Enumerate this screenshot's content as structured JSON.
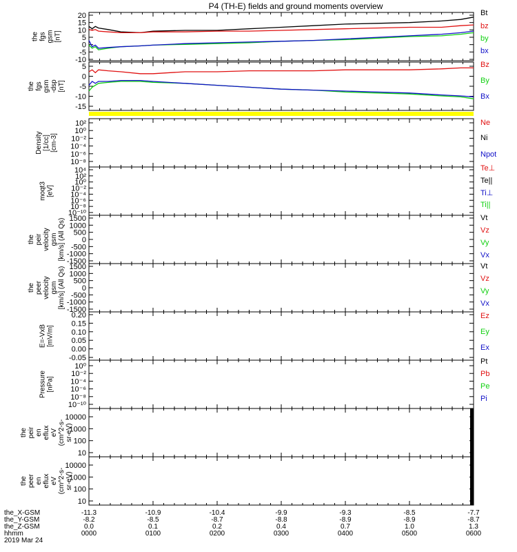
{
  "title": "P4 (TH-E) fields and ground moments overview",
  "colors": {
    "black": "#000000",
    "red": "#e01010",
    "green": "#10d010",
    "blue": "#1010c8",
    "yellow": "#ffff00"
  },
  "chart_data": [
    {
      "type": "line",
      "ylabel": [
        "the",
        "fgs",
        "gsm",
        "[nT]"
      ],
      "yticks": [
        "-10",
        "-5",
        "0",
        "5",
        "10",
        "15",
        "20"
      ],
      "ylim": [
        -10,
        21
      ],
      "legend": [
        {
          "label": "Bt",
          "color": "black"
        },
        {
          "label": "bz",
          "color": "red"
        },
        {
          "label": "by",
          "color": "green"
        },
        {
          "label": "bx",
          "color": "blue"
        }
      ],
      "x_hours": [
        0,
        0.05,
        0.1,
        0.15,
        0.3,
        0.5,
        0.8,
        1.0,
        1.5,
        2.0,
        2.5,
        3.0,
        3.5,
        4.0,
        4.5,
        5.0,
        5.5,
        5.8,
        6.0
      ],
      "series": [
        {
          "name": "Bt",
          "color": "black",
          "values": [
            12,
            10.5,
            12,
            11,
            10,
            8.5,
            8,
            9,
            9.5,
            9.5,
            10.5,
            11.5,
            12.5,
            13.5,
            14,
            14.5,
            15.5,
            16.5,
            18
          ]
        },
        {
          "name": "bz",
          "color": "red",
          "values": [
            10,
            9.5,
            10,
            9,
            8.5,
            8,
            8,
            8.5,
            8.5,
            9,
            9,
            9.5,
            10,
            10.5,
            11,
            11.5,
            11.5,
            12.5,
            13
          ]
        },
        {
          "name": "by",
          "color": "green",
          "values": [
            0,
            -2,
            -1,
            -3,
            -2,
            -1,
            -0.5,
            0,
            0.5,
            1,
            1.5,
            2.5,
            3,
            3.5,
            4.5,
            5.5,
            6,
            7,
            8
          ]
        },
        {
          "name": "bx",
          "color": "blue",
          "values": [
            3,
            -1,
            0,
            -2,
            -1.5,
            -1,
            -0.5,
            0,
            1,
            1.5,
            2,
            2.5,
            3,
            4,
            5,
            6,
            7,
            8,
            9
          ]
        }
      ]
    },
    {
      "type": "line",
      "ylabel": [
        "the",
        "fgs",
        "gsm",
        "-dsp",
        "[nT]"
      ],
      "yticks": [
        "-15",
        "-10",
        "-5",
        "0",
        "5"
      ],
      "ylim": [
        -18,
        7
      ],
      "legend": [
        {
          "label": "Bz",
          "color": "red"
        },
        {
          "label": "By",
          "color": "green"
        },
        {
          "label": "Bx",
          "color": "blue"
        }
      ],
      "x_hours": [
        0,
        0.05,
        0.1,
        0.15,
        0.3,
        0.5,
        0.8,
        1.0,
        1.5,
        2.0,
        2.5,
        3.0,
        3.5,
        4.0,
        4.5,
        5.0,
        5.5,
        5.8,
        6.0
      ],
      "series": [
        {
          "name": "Bz",
          "color": "red",
          "values": [
            2,
            3,
            1.5,
            3,
            2.5,
            2,
            1,
            1,
            2,
            2,
            2.5,
            2.5,
            2.5,
            3,
            3,
            3,
            3.5,
            4,
            4
          ]
        },
        {
          "name": "By",
          "color": "green",
          "values": [
            -8,
            -6,
            -5,
            -4,
            -3.5,
            -3,
            -3,
            -3.5,
            -4,
            -5,
            -6,
            -7,
            -7.5,
            -8.5,
            -9,
            -9.5,
            -10.5,
            -11,
            -12
          ]
        },
        {
          "name": "Bx",
          "color": "blue",
          "values": [
            -5,
            -3,
            -4,
            -3,
            -3,
            -2.5,
            -2.5,
            -3,
            -4,
            -5,
            -6,
            -7,
            -7.5,
            -8,
            -8.5,
            -9,
            -10,
            -10.5,
            -11
          ]
        }
      ]
    },
    {
      "type": "line",
      "yscale": "log",
      "ylabel": [
        "Density",
        "[1/cc]",
        "[cm-3]"
      ],
      "yticks": [
        "10⁻⁸",
        "10⁻⁶",
        "10⁻⁴",
        "10⁻²",
        "10⁰",
        "10²"
      ],
      "legend": [
        {
          "label": "Ne",
          "color": "red"
        },
        {
          "label": "Ni",
          "color": "black"
        },
        {
          "label": "Npot",
          "color": "blue"
        }
      ]
    },
    {
      "type": "line",
      "yscale": "log",
      "ylabel": [
        "moqt3",
        "[eV]"
      ],
      "yticks": [
        "10⁻¹⁰",
        "10⁻⁸",
        "10⁻⁶",
        "10⁻⁴",
        "10⁻²",
        "10⁰",
        "10²",
        "10⁴"
      ],
      "legend": [
        {
          "label": "Te⊥",
          "color": "red"
        },
        {
          "label": "Te||",
          "color": "black"
        },
        {
          "label": "Ti⊥",
          "color": "blue"
        },
        {
          "label": "Ti||",
          "color": "green"
        }
      ]
    },
    {
      "type": "line",
      "ylabel": [
        "the",
        "peir",
        "velocity",
        "gsm",
        "[km/s] (All Qs)"
      ],
      "yticks": [
        "-1500",
        "-1000",
        "-500",
        "0",
        "500",
        "1000",
        "1500"
      ],
      "legend": [
        {
          "label": "Vt",
          "color": "black"
        },
        {
          "label": "Vz",
          "color": "red"
        },
        {
          "label": "Vy",
          "color": "green"
        },
        {
          "label": "Vx",
          "color": "blue"
        }
      ]
    },
    {
      "type": "line",
      "ylabel": [
        "the",
        "peer",
        "velocity",
        "gsm",
        "[km/s] (All Qs)"
      ],
      "yticks": [
        "-1500",
        "-1000",
        "-500",
        "0",
        "500",
        "1000",
        "1500"
      ],
      "legend": [
        {
          "label": "Vt",
          "color": "black"
        },
        {
          "label": "Vz",
          "color": "red"
        },
        {
          "label": "Vy",
          "color": "green"
        },
        {
          "label": "Vx",
          "color": "blue"
        }
      ]
    },
    {
      "type": "line",
      "ylabel": [
        "E=-VxB",
        "[mV/m]"
      ],
      "yticks": [
        "-0.05",
        "0.00",
        "0.05",
        "0.10",
        "0.15",
        "0.20"
      ],
      "legend": [
        {
          "label": "Ez",
          "color": "red"
        },
        {
          "label": "Ey",
          "color": "green"
        },
        {
          "label": "Ex",
          "color": "blue"
        }
      ]
    },
    {
      "type": "line",
      "yscale": "log",
      "ylabel": [
        "Pressure",
        "[nPa]"
      ],
      "yticks": [
        "10⁻¹⁰",
        "10⁻⁸",
        "10⁻⁶",
        "10⁻⁴",
        "10⁻²",
        "10⁰"
      ],
      "legend": [
        {
          "label": "Pt",
          "color": "black"
        },
        {
          "label": "Pb",
          "color": "red"
        },
        {
          "label": "Pe",
          "color": "green"
        },
        {
          "label": "Pi",
          "color": "blue"
        }
      ]
    },
    {
      "type": "heatmap",
      "yscale": "log",
      "ylabel": [
        "the",
        "peir",
        "en",
        "eflux",
        "eV",
        "(cm^2-s-",
        "sr-eV)"
      ],
      "yticks": [
        "10",
        "100",
        "1000",
        "10000"
      ],
      "legend": []
    },
    {
      "type": "heatmap",
      "yscale": "log",
      "ylabel": [
        "the",
        "peer",
        "en",
        "eflux",
        "eV",
        "(cm^2-s-",
        "sr-eV)"
      ],
      "yticks": [
        "10",
        "100",
        "1000",
        "10000"
      ],
      "legend": []
    }
  ],
  "xaxis": {
    "row_labels": [
      "the_X-GSM",
      "the_Y-GSM",
      "the_Z-GSM",
      "hhmm",
      "2019 Mar 24"
    ],
    "columns": [
      [
        "-11.3",
        "-8.2",
        "0.0",
        "0000"
      ],
      [
        "-10.9",
        "-8.5",
        "0.1",
        "0100"
      ],
      [
        "-10.4",
        "-8.7",
        "0.2",
        "0200"
      ],
      [
        "-9.9",
        "-8.8",
        "0.4",
        "0300"
      ],
      [
        "-9.3",
        "-8.9",
        "0.7",
        "0400"
      ],
      [
        "-8.5",
        "-8.9",
        "1.0",
        "0500"
      ],
      [
        "-7.7",
        "-8.7",
        "1.3",
        "0600"
      ]
    ]
  }
}
